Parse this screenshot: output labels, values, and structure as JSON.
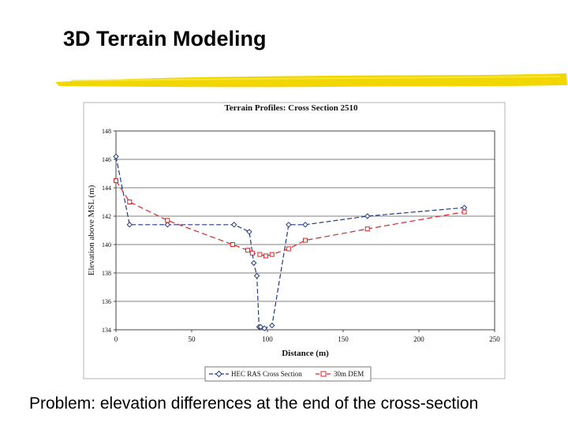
{
  "slide": {
    "title": "3D Terrain Modeling",
    "caption": "Problem:  elevation differences at the end of the cross-section",
    "accent_color": "#f2d600"
  },
  "chart_data": {
    "type": "line",
    "title": "Terrain Profiles: Cross Section 2510",
    "xlabel": "Distance (m)",
    "ylabel": "Elevation above MSL (m)",
    "xlim": [
      0,
      250
    ],
    "ylim": [
      134,
      148
    ],
    "x_ticks": [
      0,
      50,
      100,
      150,
      200,
      250
    ],
    "x_tick_labels": [
      "0",
      "50",
      "100",
      "150",
      "200",
      "250"
    ],
    "y_ticks": [
      134,
      136,
      138,
      140,
      142,
      144,
      146,
      148
    ],
    "y_tick_labels": [
      "134",
      "136",
      "138",
      "140",
      "142",
      "144",
      "146",
      "148"
    ],
    "grid": true,
    "legend_position": "bottom",
    "series": [
      {
        "name": "HEC RAS Cross Section",
        "color": "#1f3a8a",
        "dash": "6,3",
        "marker": "diamond",
        "x": [
          0,
          9,
          34,
          78,
          88,
          91,
          93,
          94.5,
          95.5,
          98,
          103,
          114,
          125,
          166,
          230
        ],
        "y": [
          146.2,
          141.4,
          141.4,
          141.4,
          140.9,
          138.7,
          137.8,
          134.2,
          134.2,
          134.1,
          134.3,
          141.4,
          141.4,
          142.0,
          142.6
        ]
      },
      {
        "name": "30m DEM",
        "color": "#d9252a",
        "dash": "7,4",
        "marker": "square",
        "x": [
          0,
          9,
          34,
          77,
          87,
          90,
          95,
          99,
          103,
          114,
          125,
          166,
          230
        ],
        "y": [
          144.5,
          143.0,
          141.7,
          140.0,
          139.6,
          139.4,
          139.3,
          139.2,
          139.3,
          139.7,
          140.3,
          141.1,
          142.3
        ]
      }
    ]
  }
}
